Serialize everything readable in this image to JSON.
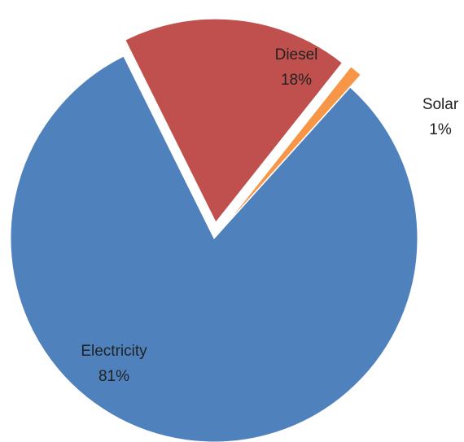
{
  "chart_data": {
    "type": "pie",
    "title": "",
    "slices": [
      {
        "name": "Electricity",
        "value": 81,
        "value_label": "81%",
        "color": "#4F81BD",
        "exploded": false
      },
      {
        "name": "Diesel",
        "value": 18,
        "value_label": "18%",
        "color": "#C0504D",
        "exploded": true
      },
      {
        "name": "Solar",
        "value": 1,
        "value_label": "1%",
        "color": "#F79646",
        "exploded": true
      }
    ],
    "legend": "none",
    "data_labels": "category-and-percent"
  }
}
